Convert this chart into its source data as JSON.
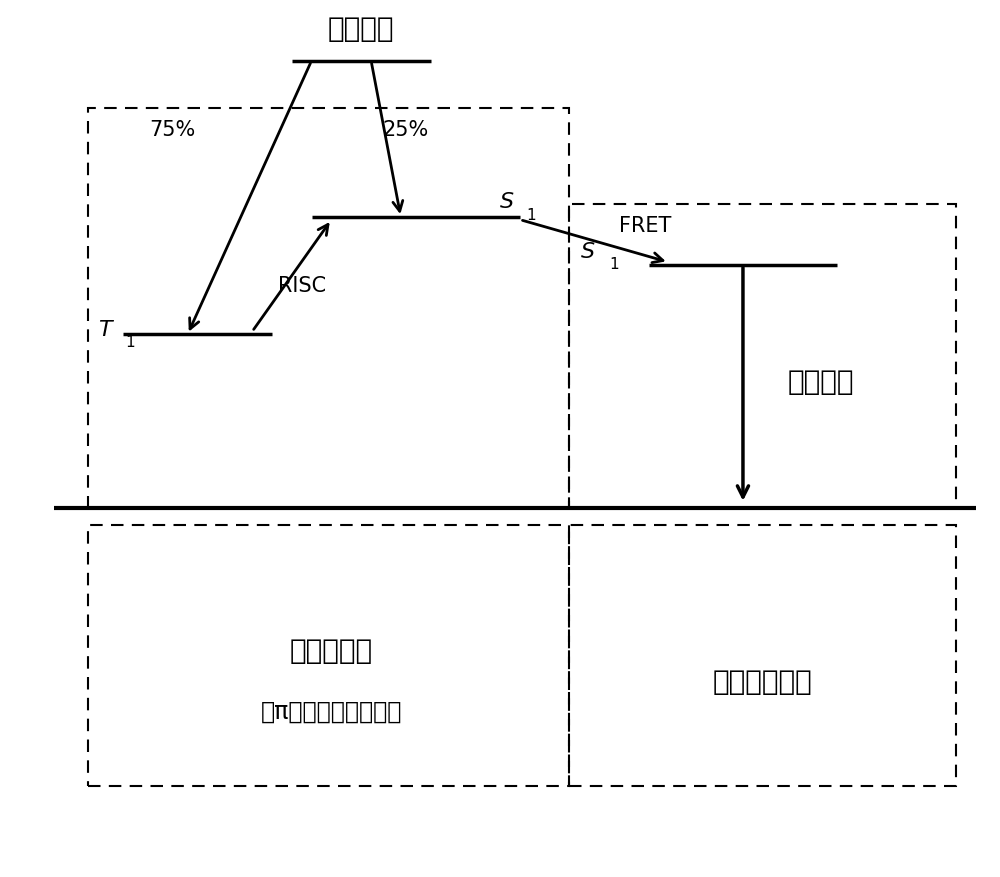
{
  "title": "电场激发",
  "label_75": "75%",
  "label_25": "25%",
  "label_T1_main": "T",
  "label_T1_sub": "1",
  "label_S1h_main": "S",
  "label_S1h_sub": "1",
  "label_RISC": "RISC",
  "label_FRET": "FRET",
  "label_S1g_main": "S",
  "label_S1g_sub": "1",
  "label_fluor": "荧光发光",
  "label_host": "主体化合物",
  "label_host_sub": "（π共轭系硼化合物）",
  "label_guest": "发光性化合物",
  "bg_color": "#ffffff",
  "line_color": "#000000",
  "figsize": [
    10,
    8.77
  ]
}
